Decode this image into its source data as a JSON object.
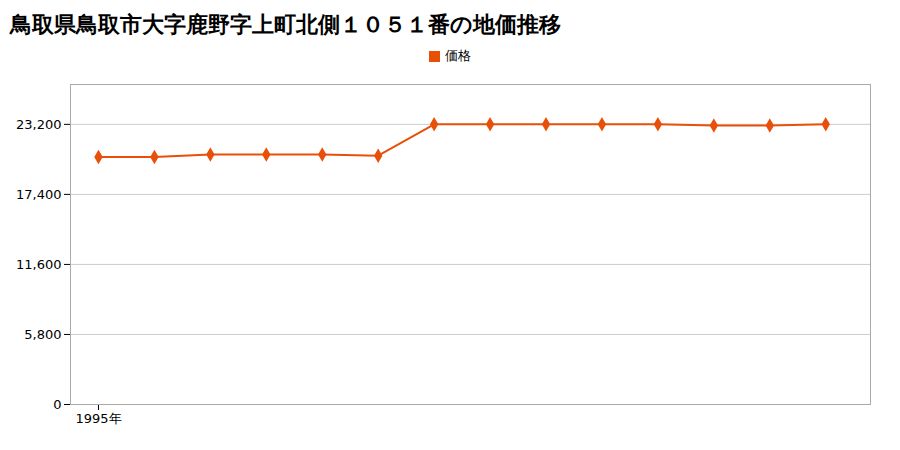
{
  "chart_data": {
    "type": "line",
    "title": "鳥取県鳥取市大字鹿野字上町北側１０５１番の地価推移",
    "x": [
      1995,
      1996,
      1997,
      1998,
      1999,
      2000,
      2001,
      2002,
      2003,
      2004,
      2005,
      2006,
      2007,
      2008
    ],
    "series": [
      {
        "name": "価格",
        "color": "#E8500A",
        "marker": "diamond",
        "values": [
          20500,
          20500,
          20700,
          20700,
          20700,
          20600,
          23200,
          23200,
          23200,
          23200,
          23200,
          23100,
          23100,
          23200
        ]
      }
    ],
    "xlim": [
      1994.5,
      2008.8
    ],
    "xticks": [
      {
        "value": 1995,
        "label": "1995年"
      }
    ],
    "ylim": [
      0,
      26500
    ],
    "yticks": [
      0,
      {
        "value": 5800,
        "label": "5,800"
      },
      {
        "value": 11600,
        "label": "11,600"
      },
      {
        "value": 17400,
        "label": "17,400"
      },
      {
        "value": 23200,
        "label": "23,200"
      }
    ],
    "grid": true,
    "legend": "top"
  }
}
